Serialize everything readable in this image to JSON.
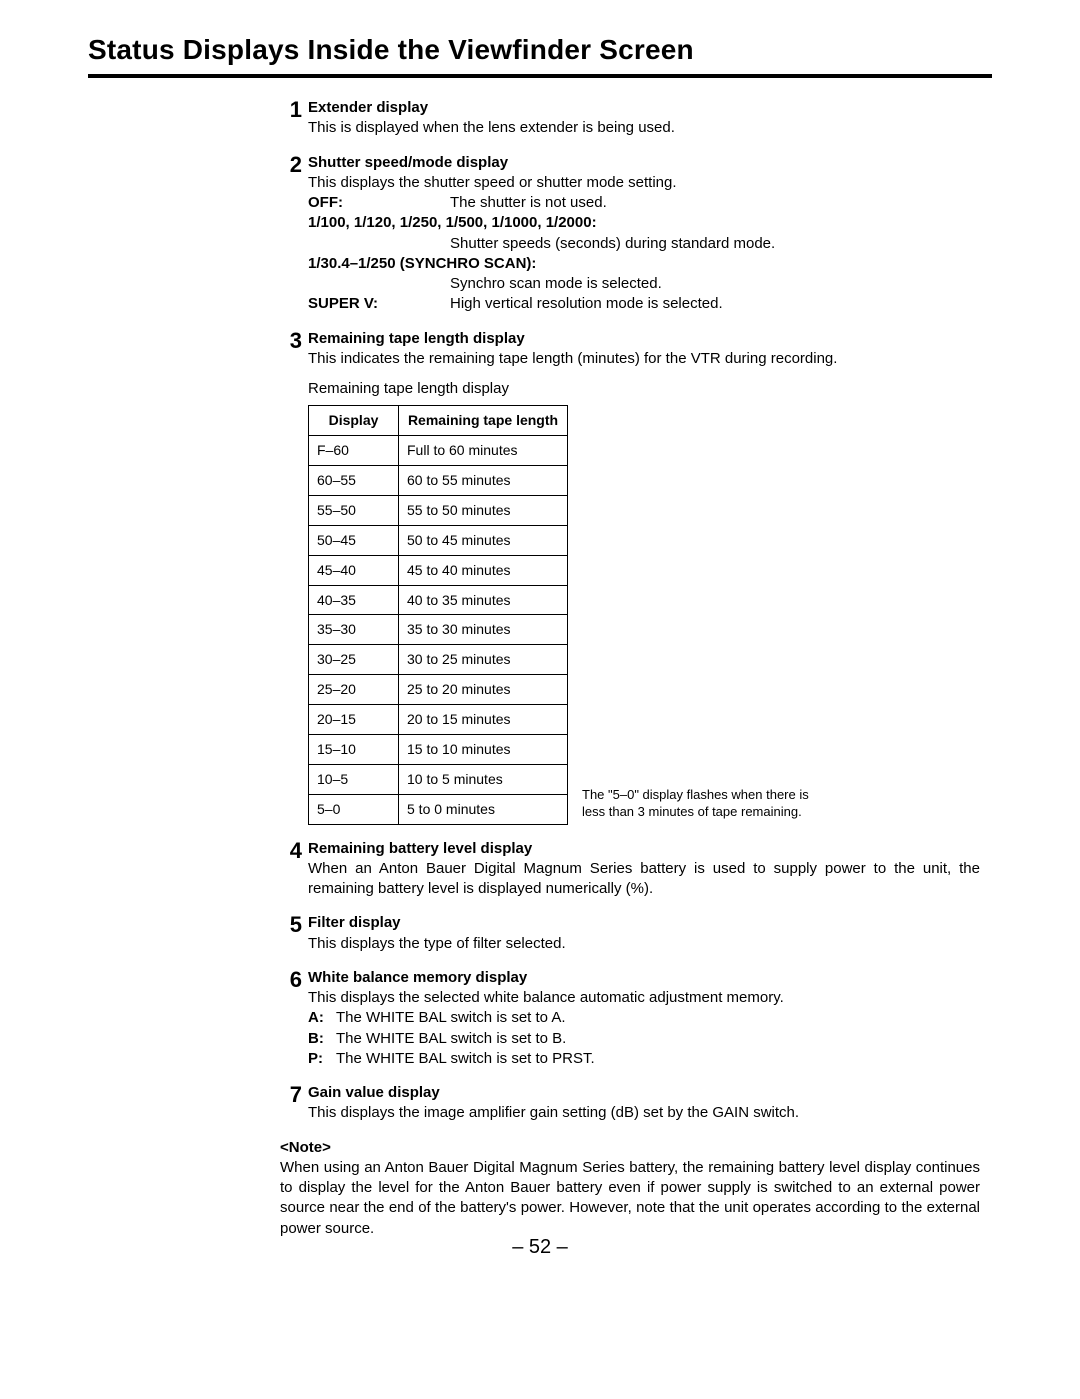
{
  "page": {
    "title": "Status Displays Inside the Viewfinder Screen",
    "page_number": "– 52 –"
  },
  "sections": {
    "s1": {
      "num": "1",
      "heading": "Extender display",
      "text": "This is displayed when the lens extender is being used."
    },
    "s2": {
      "num": "2",
      "heading": "Shutter speed/mode display",
      "intro": "This displays the shutter speed or shutter mode setting.",
      "rows": {
        "r0": {
          "label": "OFF:",
          "val": "The shutter is not used."
        },
        "r1": {
          "label": "1/100, 1/120, 1/250, 1/500, 1/1000, 1/2000:",
          "val": "Shutter speeds (seconds) during standard mode."
        },
        "r2": {
          "label": "1/30.4–1/250 (SYNCHRO SCAN):",
          "val": "Synchro scan mode is selected."
        },
        "r3": {
          "label": "SUPER V:",
          "val": "High vertical resolution mode is selected."
        }
      }
    },
    "s3": {
      "num": "3",
      "heading": "Remaining tape length display",
      "text": "This indicates the remaining tape length (minutes) for the VTR during recording.",
      "caption": "Remaining tape length display",
      "table": {
        "col1": "Display",
        "col2": "Remaining tape length",
        "rows": [
          {
            "d": "F–60",
            "r": "Full to 60 minutes"
          },
          {
            "d": "60–55",
            "r": "60 to 55 minutes"
          },
          {
            "d": "55–50",
            "r": "55 to 50 minutes"
          },
          {
            "d": "50–45",
            "r": "50 to 45 minutes"
          },
          {
            "d": "45–40",
            "r": "45 to 40 minutes"
          },
          {
            "d": "40–35",
            "r": "40 to 35 minutes"
          },
          {
            "d": "35–30",
            "r": "35 to 30 minutes"
          },
          {
            "d": "30–25",
            "r": "30 to 25 minutes"
          },
          {
            "d": "25–20",
            "r": "25 to 20 minutes"
          },
          {
            "d": "20–15",
            "r": "20 to 15 minutes"
          },
          {
            "d": "15–10",
            "r": "15 to 10 minutes"
          },
          {
            "d": "10–5",
            "r": "10 to 5 minutes"
          },
          {
            "d": "5–0",
            "r": "5 to 0 minutes"
          }
        ]
      },
      "note": "The \"5–0\" display flashes when there is less than 3 minutes of tape remaining."
    },
    "s4": {
      "num": "4",
      "heading": "Remaining battery level display",
      "text": "When an Anton Bauer Digital Magnum Series battery is used to supply power to the unit, the remaining battery level is displayed numerically (%)."
    },
    "s5": {
      "num": "5",
      "heading": "Filter display",
      "text": "This displays the type of filter selected."
    },
    "s6": {
      "num": "6",
      "heading": "White balance memory display",
      "text": "This displays the selected white balance automatic adjustment memory.",
      "rows": {
        "a": {
          "k": "A:",
          "v": "The WHITE BAL switch is set to A."
        },
        "b": {
          "k": "B:",
          "v": "The WHITE BAL switch is set to B."
        },
        "p": {
          "k": "P:",
          "v": "The WHITE BAL switch is set to PRST."
        }
      }
    },
    "s7": {
      "num": "7",
      "heading": "Gain value display",
      "text": "This displays the image amplifier gain setting (dB) set by the GAIN switch."
    }
  },
  "note": {
    "head": "<Note>",
    "body": "When using an Anton Bauer Digital Magnum Series battery, the remaining battery level display continues to display the level for the Anton Bauer battery even if power supply is switched to an external power source near the end of the battery's power. However, note that the unit operates according to the external power source."
  }
}
